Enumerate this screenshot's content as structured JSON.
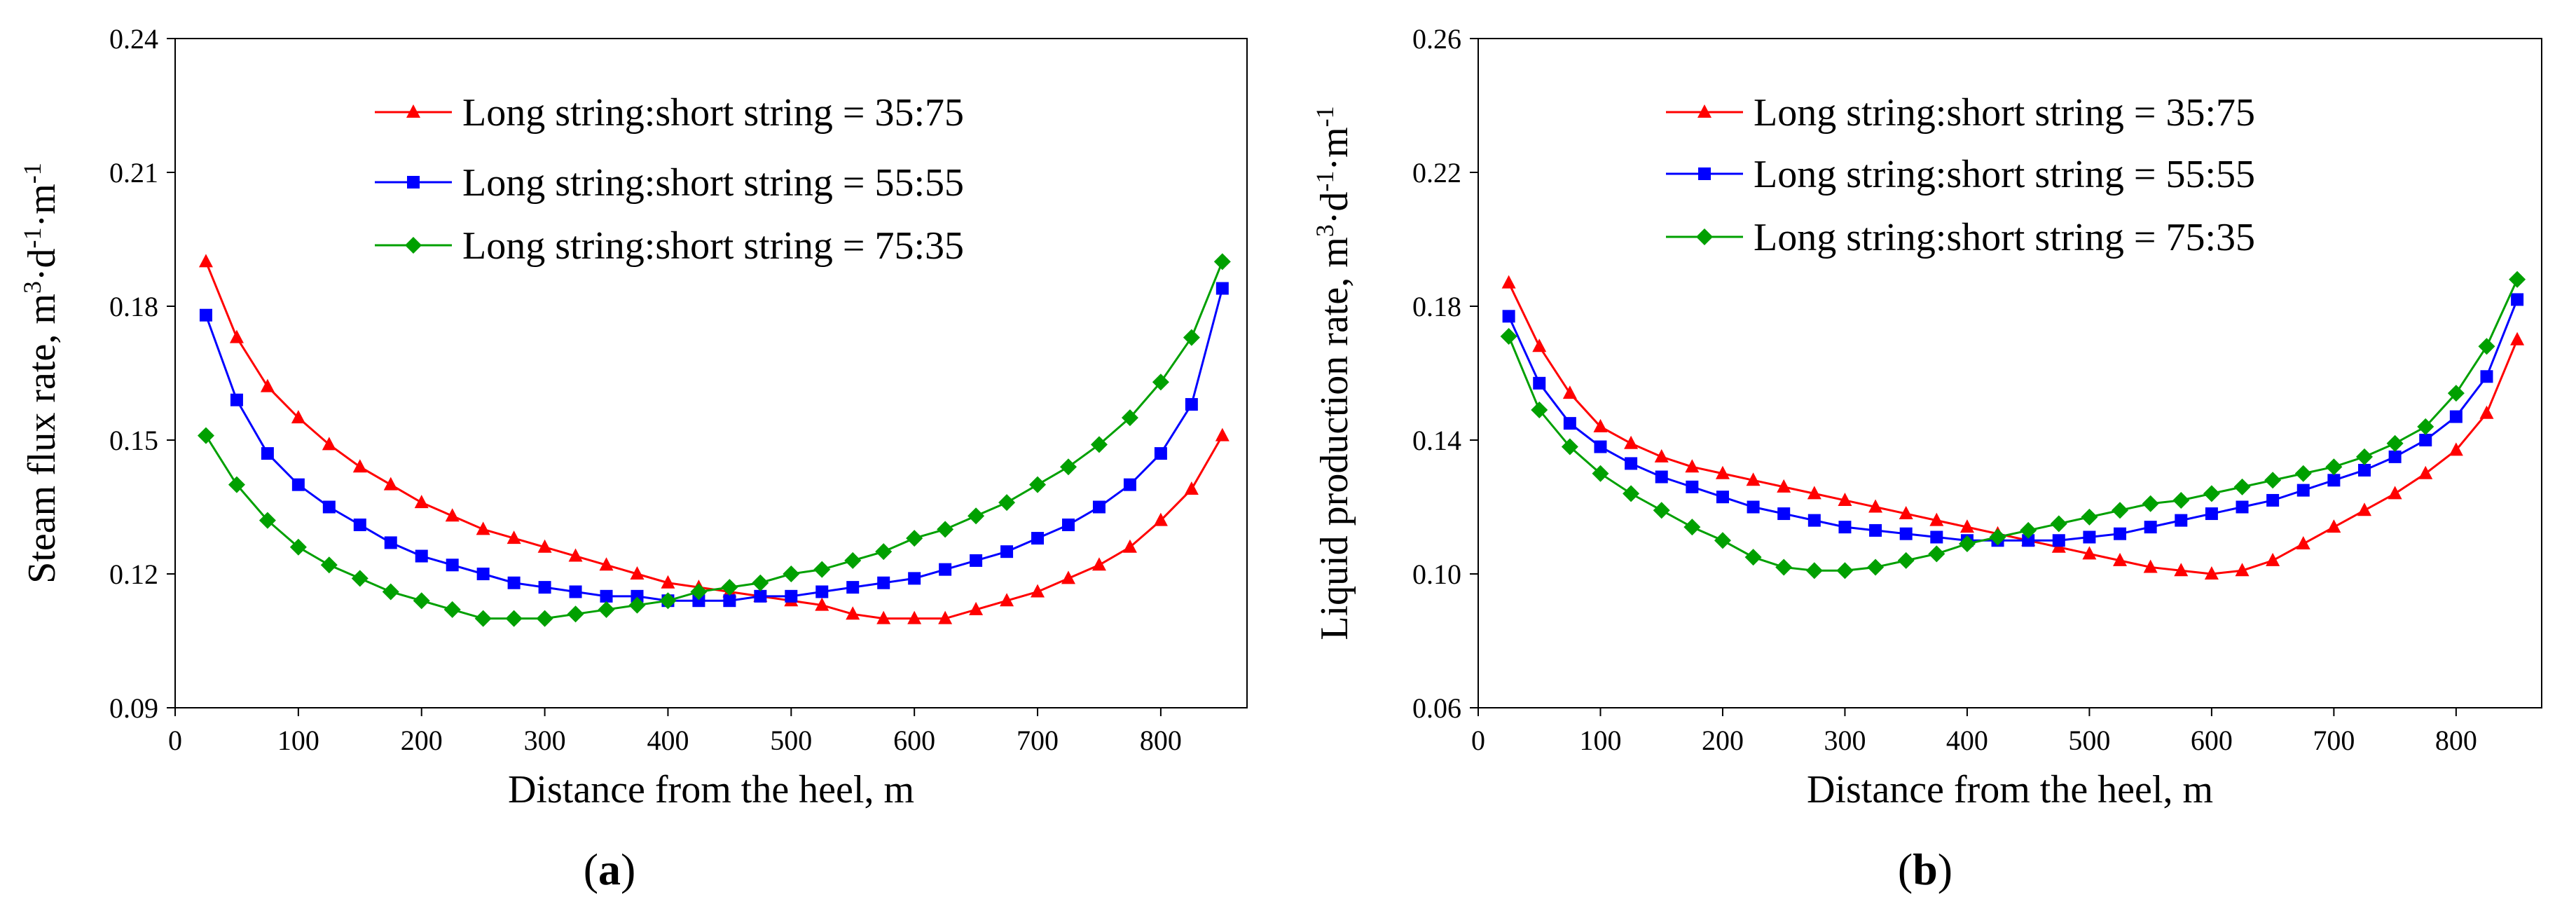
{
  "chart_data": [
    {
      "panel_label_prefix": "(",
      "panel_label_letter": "a",
      "panel_label_suffix": ")",
      "type": "line",
      "xlabel": "Distance from the heel, m",
      "ylabel": {
        "prefix": "Steam flux rate, m",
        "sup1": "3",
        "mid1": "·d",
        "sup2": "-1",
        "mid2": "·m",
        "sup3": "-1"
      },
      "xlim": [
        0,
        870
      ],
      "ylim": [
        0.09,
        0.24
      ],
      "xticks": [
        0,
        100,
        200,
        300,
        400,
        500,
        600,
        700,
        800
      ],
      "yticks": [
        0.09,
        0.12,
        0.15,
        0.18,
        0.21,
        0.24
      ],
      "ytick_labels": [
        "0.09",
        "0.12",
        "0.15",
        "0.18",
        "0.21",
        "0.24"
      ],
      "grid": false,
      "legend_position": "top-center",
      "x": [
        25,
        50,
        75,
        100,
        125,
        150,
        175,
        200,
        225,
        250,
        275,
        300,
        325,
        350,
        375,
        400,
        425,
        450,
        475,
        500,
        525,
        550,
        575,
        600,
        625,
        650,
        675,
        700,
        725,
        750,
        775,
        800,
        825,
        850
      ],
      "series": [
        {
          "name": "Long string:short string = 35:75",
          "color": "#ff0000",
          "marker": "triangle",
          "values": [
            0.19,
            0.173,
            0.162,
            0.155,
            0.149,
            0.144,
            0.14,
            0.136,
            0.133,
            0.13,
            0.128,
            0.126,
            0.124,
            0.122,
            0.12,
            0.118,
            0.117,
            0.116,
            0.115,
            0.114,
            0.113,
            0.111,
            0.11,
            0.11,
            0.11,
            0.112,
            0.114,
            0.116,
            0.119,
            0.122,
            0.126,
            0.132,
            0.139,
            0.151
          ]
        },
        {
          "name": "Long string:short string = 55:55",
          "color": "#0000ff",
          "marker": "square",
          "values": [
            0.178,
            0.159,
            0.147,
            0.14,
            0.135,
            0.131,
            0.127,
            0.124,
            0.122,
            0.12,
            0.118,
            0.117,
            0.116,
            0.115,
            0.115,
            0.114,
            0.114,
            0.114,
            0.115,
            0.115,
            0.116,
            0.117,
            0.118,
            0.119,
            0.121,
            0.123,
            0.125,
            0.128,
            0.131,
            0.135,
            0.14,
            0.147,
            0.158,
            0.184
          ]
        },
        {
          "name": "Long string:short string = 75:35",
          "color": "#00a000",
          "marker": "diamond",
          "values": [
            0.151,
            0.14,
            0.132,
            0.126,
            0.122,
            0.119,
            0.116,
            0.114,
            0.112,
            0.11,
            0.11,
            0.11,
            0.111,
            0.112,
            0.113,
            0.114,
            0.116,
            0.117,
            0.118,
            0.12,
            0.121,
            0.123,
            0.125,
            0.128,
            0.13,
            0.133,
            0.136,
            0.14,
            0.144,
            0.149,
            0.155,
            0.163,
            0.173,
            0.19
          ]
        }
      ]
    },
    {
      "panel_label_prefix": "(",
      "panel_label_letter": "b",
      "panel_label_suffix": ")",
      "type": "line",
      "xlabel": "Distance from the heel, m",
      "ylabel": {
        "prefix": "Liquid production rate, m",
        "sup1": "3",
        "mid1": "·d",
        "sup2": "-1",
        "mid2": "·m",
        "sup3": "-1"
      },
      "xlim": [
        0,
        870
      ],
      "ylim": [
        0.06,
        0.26
      ],
      "xticks": [
        0,
        100,
        200,
        300,
        400,
        500,
        600,
        700,
        800
      ],
      "yticks": [
        0.06,
        0.1,
        0.14,
        0.18,
        0.22,
        0.26
      ],
      "ytick_labels": [
        "0.06",
        "0.10",
        "0.14",
        "0.18",
        "0.22",
        "0.26"
      ],
      "grid": false,
      "legend_position": "top-center",
      "x": [
        25,
        50,
        75,
        100,
        125,
        150,
        175,
        200,
        225,
        250,
        275,
        300,
        325,
        350,
        375,
        400,
        425,
        450,
        475,
        500,
        525,
        550,
        575,
        600,
        625,
        650,
        675,
        700,
        725,
        750,
        775,
        800,
        825,
        850
      ],
      "series": [
        {
          "name": "Long string:short string = 35:75",
          "color": "#ff0000",
          "marker": "triangle",
          "values": [
            0.187,
            0.168,
            0.154,
            0.144,
            0.139,
            0.135,
            0.132,
            0.13,
            0.128,
            0.126,
            0.124,
            0.122,
            0.12,
            0.118,
            0.116,
            0.114,
            0.112,
            0.11,
            0.108,
            0.106,
            0.104,
            0.102,
            0.101,
            0.1,
            0.101,
            0.104,
            0.109,
            0.114,
            0.119,
            0.124,
            0.13,
            0.137,
            0.148,
            0.17
          ]
        },
        {
          "name": "Long string:short string = 55:55",
          "color": "#0000ff",
          "marker": "square",
          "values": [
            0.177,
            0.157,
            0.145,
            0.138,
            0.133,
            0.129,
            0.126,
            0.123,
            0.12,
            0.118,
            0.116,
            0.114,
            0.113,
            0.112,
            0.111,
            0.11,
            0.11,
            0.11,
            0.11,
            0.111,
            0.112,
            0.114,
            0.116,
            0.118,
            0.12,
            0.122,
            0.125,
            0.128,
            0.131,
            0.135,
            0.14,
            0.147,
            0.159,
            0.182
          ]
        },
        {
          "name": "Long string:short string = 75:35",
          "color": "#00a000",
          "marker": "diamond",
          "values": [
            0.171,
            0.149,
            0.138,
            0.13,
            0.124,
            0.119,
            0.114,
            0.11,
            0.105,
            0.102,
            0.101,
            0.101,
            0.102,
            0.104,
            0.106,
            0.109,
            0.111,
            0.113,
            0.115,
            0.117,
            0.119,
            0.121,
            0.122,
            0.124,
            0.126,
            0.128,
            0.13,
            0.132,
            0.135,
            0.139,
            0.144,
            0.154,
            0.168,
            0.188
          ]
        }
      ]
    }
  ]
}
